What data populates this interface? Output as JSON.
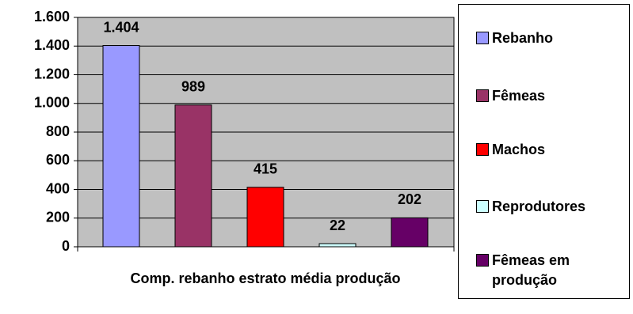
{
  "chart_data": {
    "type": "bar",
    "x_label": "Comp. rebanho estrato média produção",
    "series": [
      {
        "name": "Rebanho",
        "color": "#9999FF",
        "values": [
          1404
        ],
        "value_labels": [
          "1.404"
        ]
      },
      {
        "name": "Fêmeas",
        "color": "#993366",
        "values": [
          989
        ]
      },
      {
        "name": "Machos",
        "color": "#FF0000",
        "values": [
          415
        ]
      },
      {
        "name": "Reprodutores",
        "color": "#CCFFFF",
        "values": [
          22
        ]
      },
      {
        "name": "Fêmeas em produção",
        "color": "#660066",
        "values": [
          202
        ]
      }
    ],
    "ylim": [
      0,
      1600
    ],
    "yticks": [
      0,
      200,
      400,
      600,
      800,
      {
        "value": 1000,
        "label": "1.000"
      },
      {
        "value": 1200,
        "label": "1.200"
      },
      {
        "value": 1400,
        "label": "1.400"
      },
      {
        "value": 1600,
        "label": "1.600"
      }
    ],
    "grid": true,
    "legend": "right",
    "plot_background": "#C0C0C0"
  }
}
